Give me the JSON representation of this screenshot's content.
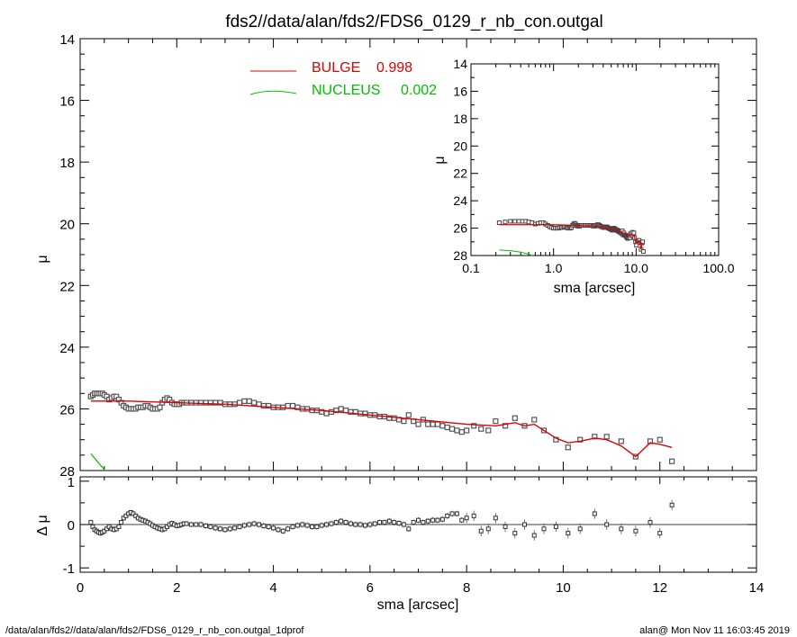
{
  "title": "fds2//data/alan/fds2/FDS6_0129_r_nb_con.outgal",
  "footer_left": "/data/alan/fds2//data/alan/fds2/FDS6_0129_r_nb_con.outgal_1dprof",
  "footer_right": "alan@  Mon Nov 11 16:03:45 2019",
  "colors": {
    "bulge": "#e00000",
    "nucleus": "#00c000",
    "data": "#555555"
  },
  "legend": [
    {
      "name": "BULGE",
      "value": "0.998",
      "color": "#e00000"
    },
    {
      "name": "NUCLEUS",
      "value": "0.002",
      "color": "#00c000"
    }
  ],
  "chart_data": [
    {
      "id": "main",
      "type": "scatter",
      "xlabel": "sma [arcsec]",
      "ylabel": "μ",
      "xlim": [
        0,
        14
      ],
      "ylim": [
        28,
        14
      ],
      "y_inverted": true,
      "xticks": [
        "0",
        "2",
        "4",
        "6",
        "8",
        "10",
        "12",
        "14"
      ],
      "yticks": [
        "14",
        "16",
        "18",
        "20",
        "22",
        "24",
        "26",
        "28"
      ],
      "data_x": [
        0.22,
        0.26,
        0.3,
        0.34,
        0.38,
        0.42,
        0.46,
        0.5,
        0.55,
        0.6,
        0.65,
        0.7,
        0.75,
        0.8,
        0.85,
        0.9,
        0.95,
        1.0,
        1.05,
        1.1,
        1.15,
        1.2,
        1.25,
        1.3,
        1.35,
        1.4,
        1.45,
        1.5,
        1.55,
        1.6,
        1.65,
        1.7,
        1.75,
        1.8,
        1.85,
        1.9,
        1.95,
        2.0,
        2.05,
        2.1,
        2.15,
        2.2,
        2.3,
        2.4,
        2.5,
        2.6,
        2.7,
        2.8,
        2.9,
        3.0,
        3.1,
        3.2,
        3.3,
        3.4,
        3.5,
        3.6,
        3.7,
        3.8,
        3.9,
        4.0,
        4.1,
        4.2,
        4.3,
        4.4,
        4.5,
        4.6,
        4.7,
        4.8,
        4.9,
        5.0,
        5.1,
        5.2,
        5.3,
        5.4,
        5.5,
        5.6,
        5.7,
        5.8,
        5.9,
        6.0,
        6.1,
        6.2,
        6.3,
        6.4,
        6.5,
        6.6,
        6.7,
        6.8,
        6.9,
        7.0,
        7.1,
        7.2,
        7.3,
        7.4,
        7.5,
        7.6,
        7.7,
        7.8,
        7.9,
        8.0,
        8.15,
        8.3,
        8.45,
        8.6,
        8.8,
        9.0,
        9.2,
        9.4,
        9.6,
        9.85,
        10.1,
        10.35,
        10.65,
        10.9,
        11.2,
        11.5,
        11.8,
        12.0,
        12.25
      ],
      "data_y": [
        25.6,
        25.55,
        25.5,
        25.5,
        25.5,
        25.5,
        25.5,
        25.55,
        25.6,
        25.7,
        25.65,
        25.6,
        25.6,
        25.7,
        25.8,
        25.9,
        25.95,
        26.0,
        26.0,
        26.0,
        26.0,
        25.95,
        25.95,
        25.95,
        25.9,
        25.9,
        25.95,
        26.0,
        26.0,
        26.0,
        25.95,
        25.8,
        25.7,
        25.65,
        25.7,
        25.8,
        25.85,
        25.85,
        25.85,
        25.8,
        25.8,
        25.8,
        25.8,
        25.8,
        25.8,
        25.8,
        25.8,
        25.8,
        25.8,
        25.85,
        25.85,
        25.85,
        25.8,
        25.75,
        25.75,
        25.8,
        25.85,
        25.9,
        25.9,
        25.95,
        25.95,
        25.95,
        25.9,
        25.9,
        25.95,
        26.0,
        26.0,
        26.05,
        26.05,
        26.1,
        26.15,
        26.1,
        26.05,
        26.0,
        26.05,
        26.1,
        26.1,
        26.15,
        26.15,
        26.2,
        26.2,
        26.25,
        26.25,
        26.3,
        26.3,
        26.35,
        26.4,
        26.2,
        26.4,
        26.5,
        26.35,
        26.5,
        26.5,
        26.5,
        26.55,
        26.6,
        26.65,
        26.7,
        26.75,
        26.7,
        26.55,
        26.65,
        26.7,
        26.4,
        26.55,
        26.3,
        26.55,
        26.35,
        26.7,
        27.0,
        27.25,
        27.0,
        26.9,
        26.9,
        27.05,
        27.55,
        27.05,
        27.0,
        27.7
      ],
      "bulge_x": [
        0.22,
        1.0,
        2.0,
        3.0,
        4.0,
        5.0,
        6.0,
        7.0,
        8.0,
        8.6,
        8.8,
        9.0,
        9.2,
        9.4,
        9.6,
        9.85,
        10.1,
        10.35,
        10.65,
        10.9,
        11.2,
        11.5,
        11.8,
        12.0,
        12.25
      ],
      "bulge_y": [
        25.75,
        25.75,
        25.8,
        25.85,
        25.95,
        26.05,
        26.2,
        26.35,
        26.5,
        26.55,
        26.5,
        26.45,
        26.55,
        26.5,
        26.7,
        26.95,
        27.1,
        27.05,
        26.95,
        27.0,
        27.2,
        27.55,
        27.1,
        27.15,
        27.25
      ],
      "nucleus_x": [
        0.22,
        0.3,
        0.38,
        0.46,
        0.52
      ],
      "nucleus_y": [
        27.45,
        27.6,
        27.75,
        27.9,
        28.0
      ]
    },
    {
      "id": "residual",
      "type": "scatter",
      "xlabel": "sma [arcsec]",
      "ylabel": "Δ μ",
      "xlim": [
        0,
        14
      ],
      "ylim": [
        -1.1,
        1.1
      ],
      "yticks": [
        "1",
        "0",
        "-1"
      ],
      "x": [
        0.22,
        0.26,
        0.3,
        0.34,
        0.38,
        0.42,
        0.46,
        0.5,
        0.55,
        0.6,
        0.65,
        0.7,
        0.75,
        0.8,
        0.85,
        0.9,
        0.95,
        1.0,
        1.05,
        1.1,
        1.15,
        1.2,
        1.25,
        1.3,
        1.35,
        1.4,
        1.45,
        1.5,
        1.55,
        1.6,
        1.65,
        1.7,
        1.75,
        1.8,
        1.85,
        1.9,
        1.95,
        2.0,
        2.05,
        2.1,
        2.15,
        2.2,
        2.3,
        2.4,
        2.5,
        2.6,
        2.7,
        2.8,
        2.9,
        3.0,
        3.1,
        3.2,
        3.3,
        3.4,
        3.5,
        3.6,
        3.7,
        3.8,
        3.9,
        4.0,
        4.1,
        4.2,
        4.3,
        4.4,
        4.5,
        4.6,
        4.7,
        4.8,
        4.9,
        5.0,
        5.1,
        5.2,
        5.3,
        5.4,
        5.5,
        5.6,
        5.7,
        5.8,
        5.9,
        6.0,
        6.1,
        6.2,
        6.3,
        6.4,
        6.5,
        6.6,
        6.7,
        6.8,
        6.9,
        7.0,
        7.1,
        7.2,
        7.3,
        7.4,
        7.5,
        7.6,
        7.7,
        7.8,
        7.9,
        8.0,
        8.15,
        8.3,
        8.45,
        8.6,
        8.8,
        9.0,
        9.2,
        9.4,
        9.6,
        9.85,
        10.1,
        10.35,
        10.65,
        10.9,
        11.2,
        11.5,
        11.8,
        12.0,
        12.25
      ],
      "y": [
        0.05,
        -0.05,
        -0.12,
        -0.15,
        -0.18,
        -0.2,
        -0.18,
        -0.15,
        -0.1,
        -0.05,
        -0.1,
        -0.12,
        -0.1,
        -0.05,
        0.05,
        0.15,
        0.2,
        0.25,
        0.28,
        0.25,
        0.2,
        0.15,
        0.12,
        0.1,
        0.08,
        0.05,
        0.02,
        -0.02,
        -0.05,
        -0.08,
        -0.1,
        -0.12,
        -0.1,
        -0.05,
        0.0,
        0.03,
        0.0,
        -0.03,
        -0.02,
        0.0,
        0.02,
        0.02,
        0.0,
        0.0,
        0.0,
        -0.03,
        -0.05,
        -0.08,
        -0.1,
        -0.12,
        -0.1,
        -0.08,
        -0.05,
        -0.02,
        0.0,
        0.02,
        0.0,
        -0.03,
        -0.05,
        -0.08,
        -0.12,
        -0.15,
        -0.1,
        -0.05,
        -0.02,
        0.0,
        -0.02,
        -0.05,
        -0.05,
        -0.02,
        0.0,
        0.02,
        0.05,
        0.08,
        0.05,
        0.02,
        0.0,
        0.0,
        -0.02,
        0.0,
        0.02,
        0.05,
        0.05,
        0.08,
        0.05,
        0.03,
        0.0,
        -0.1,
        0.05,
        0.1,
        0.05,
        0.08,
        0.1,
        0.1,
        0.12,
        0.2,
        0.25,
        0.25,
        0.1,
        0.15,
        0.2,
        -0.15,
        -0.1,
        0.15,
        -0.05,
        -0.2,
        0.0,
        -0.25,
        -0.1,
        -0.05,
        -0.2,
        -0.1,
        0.25,
        0.0,
        -0.1,
        -0.15,
        0.05,
        -0.2,
        0.45
      ]
    },
    {
      "id": "inset",
      "type": "scatter",
      "xlabel": "sma [arcsec]",
      "ylabel": "μ",
      "x_scale": "log",
      "xlim": [
        0.1,
        100.0
      ],
      "ylim": [
        28,
        14
      ],
      "y_inverted": true,
      "xticks": [
        "0.1",
        "1.0",
        "10.0",
        "100.0"
      ],
      "yticks": [
        "14",
        "16",
        "18",
        "20",
        "22",
        "24",
        "26",
        "28"
      ],
      "nucleus_x": [
        0.22,
        0.3,
        0.4,
        0.5,
        0.55
      ],
      "nucleus_y": [
        27.6,
        27.65,
        27.75,
        27.9,
        28.0
      ]
    }
  ]
}
